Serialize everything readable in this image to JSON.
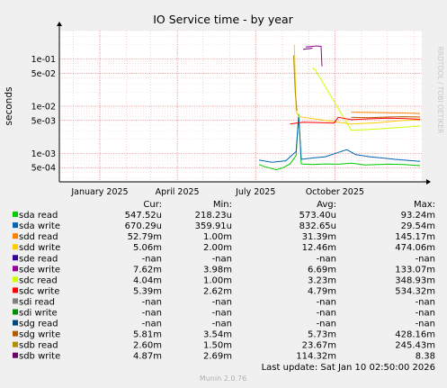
{
  "chart_data": {
    "type": "line",
    "title": "IO Service time - by year",
    "ylabel": "seconds",
    "side_label": "RRDTOOL / TOBI OETIKER",
    "y_scale": "log",
    "ylim": [
      0.00025,
      0.4
    ],
    "y_ticks": [
      {
        "value": 0.1,
        "label": "1e-01"
      },
      {
        "value": 0.05,
        "label": "5e-02"
      },
      {
        "value": 0.01,
        "label": "1e-02"
      },
      {
        "value": 0.005,
        "label": "5e-03"
      },
      {
        "value": 0.001,
        "label": "1e-03"
      },
      {
        "value": 0.0005,
        "label": "5e-04"
      }
    ],
    "xlim": [
      "2024-11-15",
      "2026-01-10"
    ],
    "x_ticks": [
      {
        "date": "2025-01-01",
        "label": "January 2025"
      },
      {
        "date": "2025-04-01",
        "label": "April 2025"
      },
      {
        "date": "2025-07-01",
        "label": "July 2025"
      },
      {
        "date": "2025-10-01",
        "label": "October 2025"
      }
    ],
    "grid": true,
    "legend_headers": [
      "Cur:",
      "Min:",
      "Avg:",
      "Max:"
    ],
    "series": [
      {
        "name": "sda read",
        "color": "#00cc00",
        "cur": "547.52u",
        "min": "218.23u",
        "avg": "573.40u",
        "max": "93.24m",
        "points": [
          [
            "2025-07-05",
            0.00058
          ],
          [
            "2025-07-12",
            0.00052
          ],
          [
            "2025-07-18",
            0.00049
          ],
          [
            "2025-07-25",
            0.00045
          ],
          [
            "2025-08-02",
            0.0005
          ],
          [
            "2025-08-10",
            0.0006
          ],
          [
            "2025-08-17",
            0.0009
          ],
          [
            "2025-08-20",
            0.0068
          ],
          [
            "2025-08-23",
            0.0006
          ],
          [
            "2025-09-05",
            0.00058
          ],
          [
            "2025-09-20",
            0.0006
          ],
          [
            "2025-10-05",
            0.00059
          ],
          [
            "2025-10-20",
            0.00062
          ],
          [
            "2025-11-05",
            0.00057
          ],
          [
            "2025-11-20",
            0.00058
          ],
          [
            "2025-12-05",
            0.00059
          ],
          [
            "2025-12-20",
            0.00058
          ],
          [
            "2026-01-08",
            0.00055
          ]
        ]
      },
      {
        "name": "sda write",
        "color": "#0066b3",
        "cur": "670.29u",
        "min": "359.91u",
        "avg": "832.65u",
        "max": "29.54m",
        "points": [
          [
            "2025-07-05",
            0.00072
          ],
          [
            "2025-07-20",
            0.00065
          ],
          [
            "2025-08-05",
            0.0007
          ],
          [
            "2025-08-17",
            0.0011
          ],
          [
            "2025-08-20",
            0.006
          ],
          [
            "2025-08-23",
            0.00075
          ],
          [
            "2025-09-05",
            0.0008
          ],
          [
            "2025-09-20",
            0.00085
          ],
          [
            "2025-10-05",
            0.00105
          ],
          [
            "2025-10-15",
            0.0012
          ],
          [
            "2025-10-25",
            0.00095
          ],
          [
            "2025-11-10",
            0.00085
          ],
          [
            "2025-11-25",
            0.0008
          ],
          [
            "2025-12-10",
            0.00075
          ],
          [
            "2026-01-08",
            0.00068
          ]
        ]
      },
      {
        "name": "sdd read",
        "color": "#ff8000",
        "cur": "52.79m",
        "min": "1.00m",
        "avg": "31.39m",
        "max": "145.17m",
        "points": [
          [
            "2025-10-20",
            0.0075
          ],
          [
            "2025-11-10",
            0.0074
          ],
          [
            "2025-12-01",
            0.0073
          ],
          [
            "2025-12-20",
            0.0072
          ],
          [
            "2026-01-08",
            0.007
          ]
        ]
      },
      {
        "name": "sdd write",
        "color": "#ffcc00",
        "cur": "5.06m",
        "min": "2.00m",
        "avg": "12.46m",
        "max": "474.06m",
        "points": [
          [
            "2025-08-15",
            0.2
          ],
          [
            "2025-08-17",
            0.008
          ],
          [
            "2025-08-20",
            0.006
          ],
          [
            "2025-10-20",
            0.0042
          ],
          [
            "2025-11-20",
            0.0045
          ],
          [
            "2025-12-20",
            0.005
          ],
          [
            "2026-01-08",
            0.0052
          ]
        ]
      },
      {
        "name": "sde read",
        "color": "#330099",
        "cur": "-nan",
        "min": "-nan",
        "avg": "-nan",
        "max": "-nan",
        "points": []
      },
      {
        "name": "sde write",
        "color": "#990099",
        "cur": "7.62m",
        "min": "3.98m",
        "avg": "6.69m",
        "max": "133.07m",
        "points": [
          [
            "2025-08-28",
            0.18
          ],
          [
            "2025-09-10",
            0.19
          ],
          [
            "2025-09-15",
            0.185
          ],
          [
            "2025-09-16",
            0.07
          ]
        ]
      },
      {
        "name": "sdc read",
        "color": "#ccff00",
        "cur": "4.04m",
        "min": "1.00m",
        "avg": "3.23m",
        "max": "348.93m",
        "points": [
          [
            "2025-09-05",
            0.065
          ],
          [
            "2025-09-08",
            0.06
          ],
          [
            "2025-10-20",
            0.0031
          ],
          [
            "2025-11-20",
            0.0033
          ],
          [
            "2025-12-20",
            0.0036
          ],
          [
            "2026-01-08",
            0.0038
          ]
        ]
      },
      {
        "name": "sdc write",
        "color": "#ff0000",
        "cur": "5.39m",
        "min": "2.62m",
        "avg": "4.79m",
        "max": "534.32m",
        "points": [
          [
            "2025-08-10",
            0.0042
          ],
          [
            "2025-08-25",
            0.0046
          ],
          [
            "2025-09-15",
            0.0045
          ],
          [
            "2025-09-30",
            0.0044
          ],
          [
            "2025-10-05",
            0.0058
          ],
          [
            "2025-10-20",
            0.0052
          ],
          [
            "2025-11-10",
            0.0054
          ],
          [
            "2025-12-01",
            0.0056
          ],
          [
            "2025-12-20",
            0.0055
          ],
          [
            "2026-01-08",
            0.0053
          ]
        ]
      },
      {
        "name": "sdi read",
        "color": "#808080",
        "cur": "-nan",
        "min": "-nan",
        "avg": "-nan",
        "max": "-nan",
        "points": []
      },
      {
        "name": "sdi write",
        "color": "#008f00",
        "cur": "-nan",
        "min": "-nan",
        "avg": "-nan",
        "max": "-nan",
        "points": []
      },
      {
        "name": "sdg read",
        "color": "#00487d",
        "cur": "-nan",
        "min": "-nan",
        "avg": "-nan",
        "max": "-nan",
        "points": []
      },
      {
        "name": "sdg write",
        "color": "#b35a00",
        "cur": "5.81m",
        "min": "3.54m",
        "avg": "5.73m",
        "max": "428.16m",
        "points": [
          [
            "2025-10-20",
            0.0058
          ],
          [
            "2025-11-10",
            0.0057
          ],
          [
            "2025-12-01",
            0.0059
          ],
          [
            "2025-12-20",
            0.006
          ],
          [
            "2026-01-08",
            0.0059
          ]
        ]
      },
      {
        "name": "sdb read",
        "color": "#b38f00",
        "cur": "2.60m",
        "min": "1.50m",
        "avg": "23.67m",
        "max": "245.43m",
        "points": [
          [
            "2025-08-14",
            0.12
          ],
          [
            "2025-08-16",
            0.02
          ],
          [
            "2025-08-18",
            0.008
          ]
        ]
      },
      {
        "name": "sdb write",
        "color": "#6b006b",
        "cur": "4.87m",
        "min": "2.69m",
        "avg": "114.32m",
        "max": "8.38",
        "points": [
          [
            "2025-08-25",
            0.16
          ],
          [
            "2025-09-05",
            0.17
          ]
        ]
      }
    ]
  },
  "footer": {
    "last_update": "Last update: Sat Jan 10 02:50:00 2026",
    "version": "Munin 2.0.76"
  }
}
